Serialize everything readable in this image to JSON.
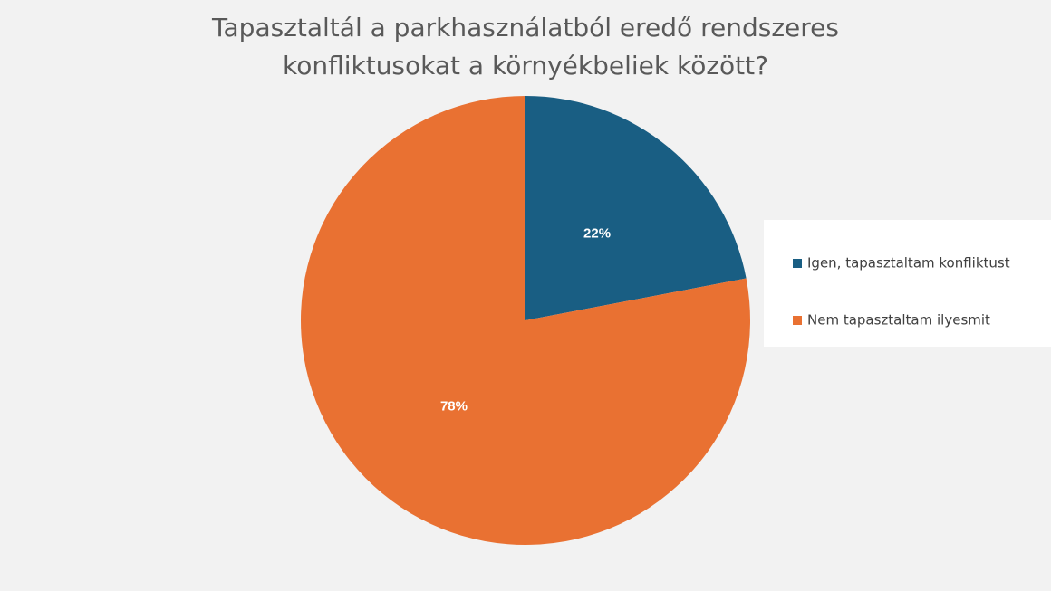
{
  "chart_data": {
    "type": "pie",
    "title": [
      "Tapasztaltál a parkhasználatból eredő rendszeres",
      "konfliktusokat a környékbeliek között?"
    ],
    "categories": [
      "Igen, tapasztaltam konfliktust",
      "Nem tapasztaltam ilyesmit"
    ],
    "values": [
      22,
      78
    ],
    "value_labels": [
      "22%",
      "78%"
    ],
    "colors": [
      "#195e83",
      "#e97132"
    ],
    "legend": "right"
  }
}
